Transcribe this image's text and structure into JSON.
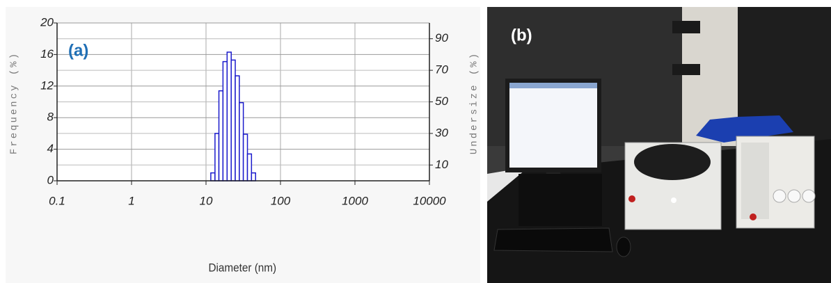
{
  "chart_data": {
    "type": "histogram",
    "annotation": "(a)",
    "xlabel": "Diameter (nm)",
    "ylabel": "Frequency (%)",
    "y2label": "Undersize (%)",
    "xscale": "log",
    "xlim": [
      0.1,
      10000
    ],
    "xticks": [
      0.1,
      1,
      10,
      100,
      1000,
      10000
    ],
    "ylim": [
      0,
      20
    ],
    "yticks": [
      0,
      4,
      8,
      12,
      16,
      20
    ],
    "y2lim": [
      0,
      100
    ],
    "y2ticks": [
      10,
      30,
      50,
      70,
      90
    ],
    "bins": [
      11.6,
      13.2,
      14.9,
      16.9,
      19.2,
      21.8,
      24.7,
      28.0,
      31.7,
      36.0,
      40.8,
      46.3
    ],
    "values": [
      1,
      6,
      11.4,
      15.1,
      16.3,
      15.3,
      13.3,
      9.9,
      5.9,
      3.4,
      1
    ],
    "color": "#1a1acc",
    "grid": true
  },
  "photo": {
    "label": "(b)"
  }
}
